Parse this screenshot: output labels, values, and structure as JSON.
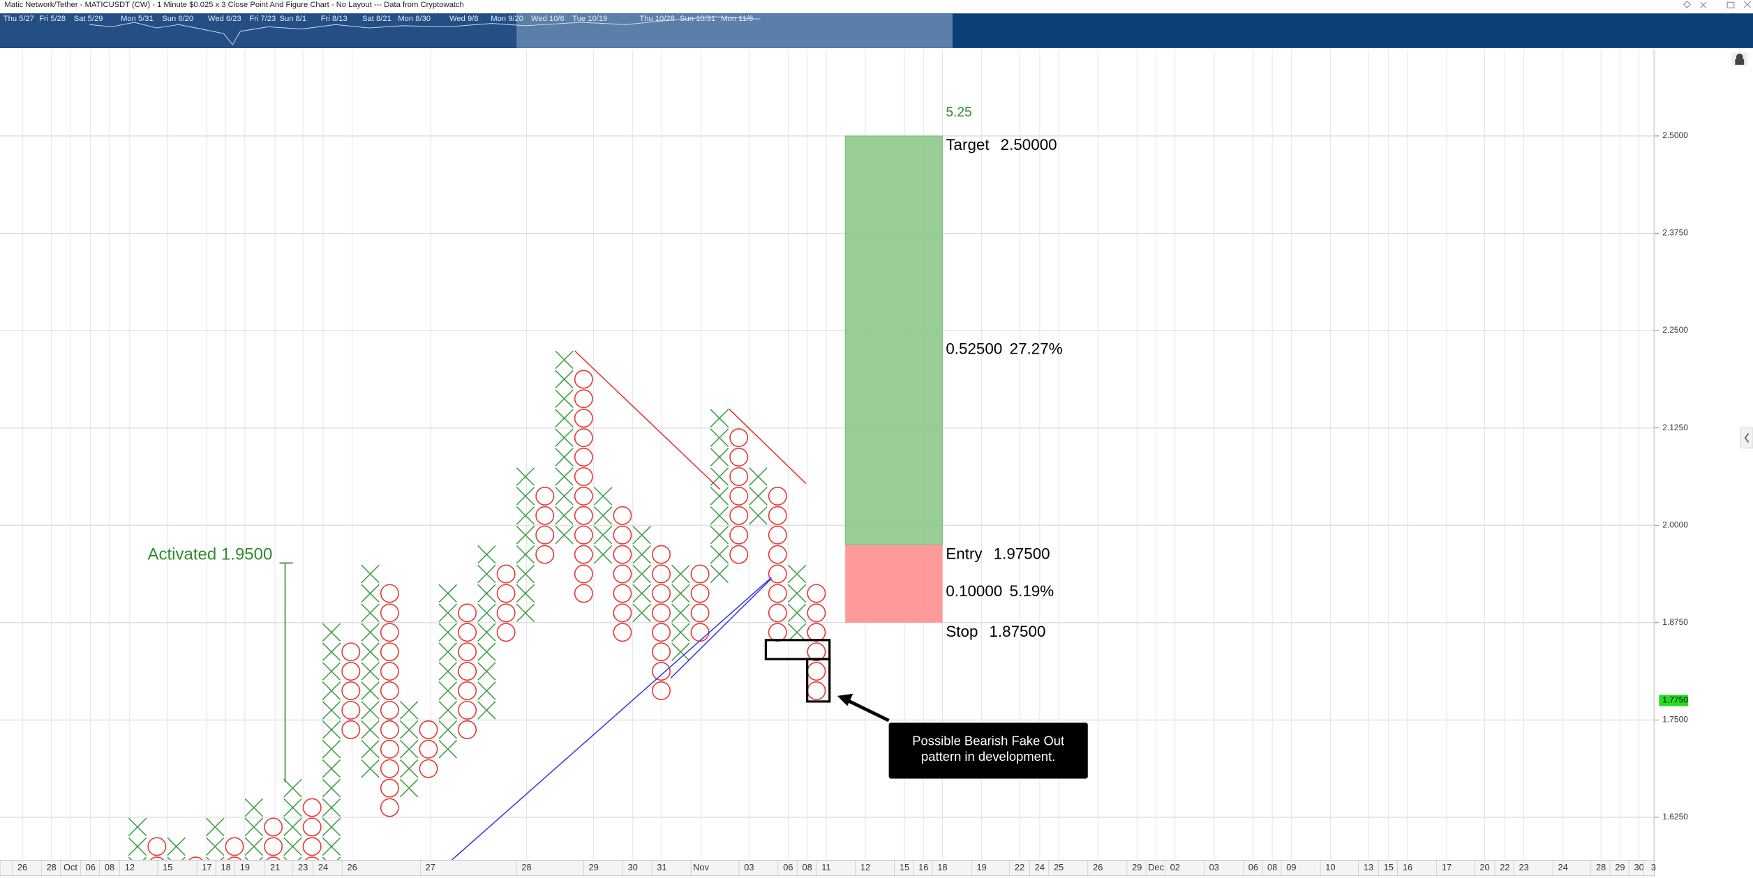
{
  "chart_data": {
    "type": "point-and-figure",
    "title": "Matic Network/Tether - MATICUSDT (CW) - 1 Minute $0.025 x 3 Close Point And Figure Chart - No Layout --- Data from Cryptowatch",
    "box_size": 0.025,
    "ylim": [
      1.57,
      2.61
    ],
    "yticks": [
      {
        "value": 1.625,
        "label": "1.6250"
      },
      {
        "value": 1.75,
        "label": "1.7500"
      },
      {
        "value": 1.875,
        "label": "1.8750"
      },
      {
        "value": 2,
        "label": "2.0000"
      },
      {
        "value": 2.125,
        "label": "2.1250"
      },
      {
        "value": 2.25,
        "label": "2.2500"
      },
      {
        "value": 2.375,
        "label": "2.3750"
      },
      {
        "value": 2.5,
        "label": "2.5000"
      }
    ],
    "grid": true,
    "x_labels": [
      "26",
      "28",
      "Oct",
      "06",
      "08",
      "12",
      "15",
      "17",
      "18",
      "19",
      "21",
      "23",
      "24",
      "26",
      "27",
      "28",
      "29",
      "30",
      "31",
      "Nov",
      "03",
      "06",
      "08",
      "11",
      "12",
      "15",
      "16",
      "18",
      "19",
      "22",
      "24",
      "25",
      "26",
      "29",
      "Dec",
      "02",
      "03",
      "06",
      "08",
      "09",
      "10",
      "13",
      "15",
      "16",
      "17",
      "20",
      "22",
      "23",
      "24",
      "28",
      "29",
      "30",
      "3"
    ],
    "navigator_labels": [
      "Thu 5/27",
      "Fri 5/28",
      "Sat 5/29",
      "Mon 5/31",
      "Sun 6/20",
      "Wed 6/23",
      "Fri 7/23",
      "Sun 8/1",
      "Fri 8/13",
      "Sat 8/21",
      "Mon 8/30",
      "Wed 9/8",
      "Mon 9/20",
      "Wed 10/6",
      "Tue 10/19",
      "Thu 10/28",
      "Sun 10/31",
      "Mon 11/8"
    ],
    "x_color": "#43a047",
    "o_color": "#e53935",
    "columns": [
      {
        "type": "X",
        "high": 1.625,
        "low": 1.55
      },
      {
        "type": "O",
        "high": 1.6,
        "low": 1.55
      },
      {
        "type": "X",
        "high": 1.6,
        "low": 1.55
      },
      {
        "type": "O",
        "high": 1.575,
        "low": 1.55
      },
      {
        "type": "X",
        "high": 1.625,
        "low": 1.55
      },
      {
        "type": "O",
        "high": 1.6,
        "low": 1.55
      },
      {
        "type": "X",
        "high": 1.65,
        "low": 1.55
      },
      {
        "type": "O",
        "high": 1.625,
        "low": 1.55
      },
      {
        "type": "X",
        "high": 1.675,
        "low": 1.55
      },
      {
        "type": "O",
        "high": 1.65,
        "low": 1.55
      },
      {
        "type": "X",
        "high": 1.875,
        "low": 1.55
      },
      {
        "type": "O",
        "high": 1.85,
        "low": 1.725
      },
      {
        "type": "X",
        "high": 1.95,
        "low": 1.675
      },
      {
        "type": "O",
        "high": 1.925,
        "low": 1.625
      },
      {
        "type": "X",
        "high": 1.775,
        "low": 1.65
      },
      {
        "type": "O",
        "high": 1.75,
        "low": 1.675
      },
      {
        "type": "X",
        "high": 1.925,
        "low": 1.7
      },
      {
        "type": "O",
        "high": 1.9,
        "low": 1.725
      },
      {
        "type": "X",
        "high": 1.975,
        "low": 1.75
      },
      {
        "type": "O",
        "high": 1.95,
        "low": 1.85
      },
      {
        "type": "X",
        "high": 2.075,
        "low": 1.875
      },
      {
        "type": "O",
        "high": 2.05,
        "low": 1.95
      },
      {
        "type": "X",
        "high": 2.225,
        "low": 1.975
      },
      {
        "type": "O",
        "high": 2.2,
        "low": 1.9
      },
      {
        "type": "X",
        "high": 2.05,
        "low": 1.95
      },
      {
        "type": "O",
        "high": 2.025,
        "low": 1.85
      },
      {
        "type": "X",
        "high": 2,
        "low": 1.875
      },
      {
        "type": "O",
        "high": 1.975,
        "low": 1.775
      },
      {
        "type": "X",
        "high": 1.95,
        "low": 1.825
      },
      {
        "type": "O",
        "high": 1.95,
        "low": 1.85
      },
      {
        "type": "X",
        "high": 2.15,
        "low": 1.925
      },
      {
        "type": "O",
        "high": 2.125,
        "low": 1.95
      },
      {
        "type": "X",
        "high": 2.075,
        "low": 2
      },
      {
        "type": "O",
        "high": 2.05,
        "low": 1.85
      },
      {
        "type": "X",
        "high": 1.95,
        "low": 1.85
      },
      {
        "type": "O",
        "high": 1.925,
        "low": 1.775
      }
    ],
    "trade_levels": [
      {
        "name": "Target",
        "value": 2.5,
        "label": "2.50000"
      },
      {
        "name": "Entry",
        "value": 1.975,
        "label": "1.97500"
      },
      {
        "name": "Stop",
        "value": 1.875,
        "label": "1.87500"
      }
    ],
    "risk_reward": "5.25",
    "reward_amount": "0.52500",
    "reward_pct": "27.27%",
    "risk_amount": "0.10000",
    "risk_pct": "5.19%",
    "activated": "Activated 1.9500",
    "last_price": {
      "value": 1.775,
      "label": "1.7750"
    },
    "callout": [
      "Possible Bearish Fake Out",
      "pattern in development."
    ]
  }
}
